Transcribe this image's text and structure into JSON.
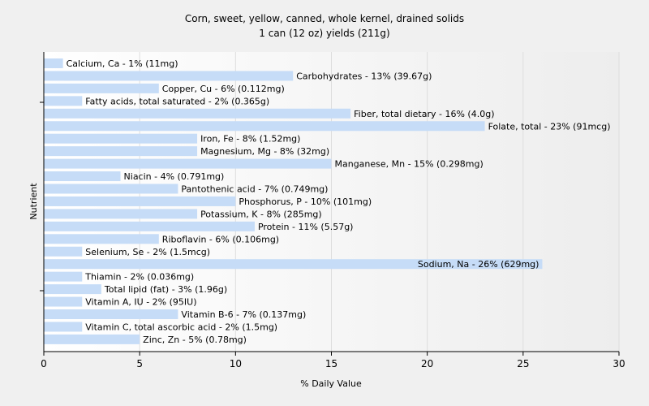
{
  "chart_data": {
    "type": "bar",
    "orientation": "horizontal",
    "title": "Corn, sweet, yellow, canned, whole kernel, drained solids",
    "subtitle": "1 can (12 oz) yields (211g)",
    "xlabel": "% Daily Value",
    "ylabel": "Nutrient",
    "xlim": [
      0,
      30
    ],
    "x_ticks": [
      "0",
      "5",
      "10",
      "15",
      "20",
      "25",
      "30"
    ],
    "grid": "vertical",
    "bar_color": "#c6dcf7",
    "categories": [
      "Calcium, Ca",
      "Carbohydrates",
      "Copper, Cu",
      "Fatty acids, total saturated",
      "Fiber, total dietary",
      "Folate, total",
      "Iron, Fe",
      "Magnesium, Mg",
      "Manganese, Mn",
      "Niacin",
      "Pantothenic acid",
      "Phosphorus, P",
      "Potassium, K",
      "Protein",
      "Riboflavin",
      "Selenium, Se",
      "Sodium, Na",
      "Thiamin",
      "Total lipid (fat)",
      "Vitamin A, IU",
      "Vitamin B-6",
      "Vitamin C, total ascorbic acid",
      "Zinc, Zn"
    ],
    "values": [
      1,
      13,
      6,
      2,
      16,
      23,
      8,
      8,
      15,
      4,
      7,
      10,
      8,
      11,
      6,
      2,
      26,
      2,
      3,
      2,
      7,
      2,
      5
    ],
    "labels": [
      "Calcium, Ca - 1% (11mg)",
      "Carbohydrates - 13% (39.67g)",
      "Copper, Cu - 6% (0.112mg)",
      "Fatty acids, total saturated - 2% (0.365g)",
      "Fiber, total dietary - 16% (4.0g)",
      "Folate, total - 23% (91mcg)",
      "Iron, Fe - 8% (1.52mg)",
      "Magnesium, Mg - 8% (32mg)",
      "Manganese, Mn - 15% (0.298mg)",
      "Niacin - 4% (0.791mg)",
      "Pantothenic acid - 7% (0.749mg)",
      "Phosphorus, P - 10% (101mg)",
      "Potassium, K - 8% (285mg)",
      "Protein - 11% (5.57g)",
      "Riboflavin - 6% (0.106mg)",
      "Selenium, Se - 2% (1.5mcg)",
      "Sodium, Na - 26% (629mg)",
      "Thiamin - 2% (0.036mg)",
      "Total lipid (fat) - 3% (1.96g)",
      "Vitamin A, IU - 2% (95IU)",
      "Vitamin B-6 - 7% (0.137mg)",
      "Vitamin C, total ascorbic acid - 2% (1.5mg)",
      "Zinc, Zn - 5% (0.78mg)"
    ]
  }
}
